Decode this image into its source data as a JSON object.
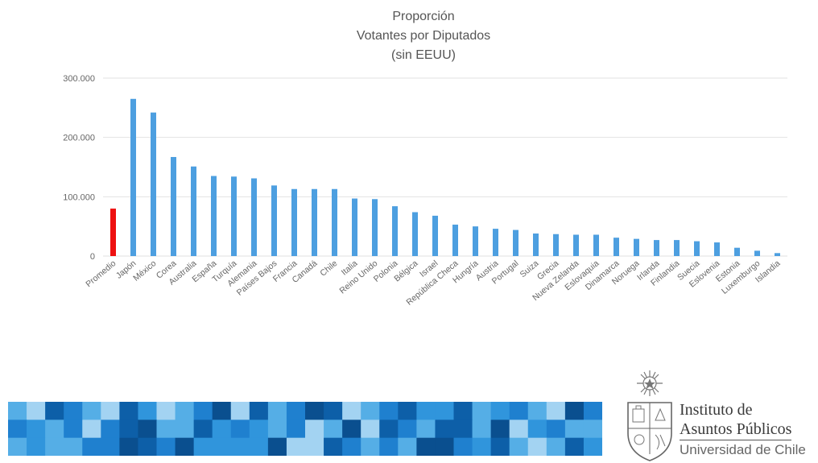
{
  "chart_data": {
    "type": "bar",
    "title": [
      "Proporción",
      "Votantes por Diputados",
      "(sin EEUU)"
    ],
    "xlabel": "",
    "ylabel": "",
    "ylim": [
      0,
      300000
    ],
    "yticks": [
      0,
      100000,
      200000,
      300000
    ],
    "ytick_labels": [
      "0",
      "100.000",
      "200.000",
      "300.000"
    ],
    "grid": true,
    "legend": "none",
    "colors": {
      "default": "#4d9fe0",
      "highlight": "#ee1111"
    },
    "highlight_index": 0,
    "categories": [
      "Promedio",
      "Japón",
      "México",
      "Corea",
      "Australia",
      "España",
      "Turquía",
      "Alemania",
      "Países Bajos",
      "Francia",
      "Canadá",
      "Chile",
      "Italia",
      "Reino Unido",
      "Polonia",
      "Bélgica",
      "Israel",
      "República Checa",
      "Hungría",
      "Austria",
      "Portugal",
      "Suiza",
      "Grecia",
      "Nueva Zelanda",
      "Eslovaquia",
      "Dinamarca",
      "Noruega",
      "Irlanda",
      "Finlandia",
      "Suecia",
      "Eslovenia",
      "Estonia",
      "Luxemburgo",
      "Islandia"
    ],
    "values": [
      80000,
      265000,
      242000,
      167000,
      151000,
      135000,
      134000,
      131000,
      119000,
      113000,
      113000,
      113000,
      97000,
      96000,
      84000,
      74000,
      68000,
      53000,
      50000,
      46000,
      44000,
      38000,
      37000,
      36000,
      36000,
      31000,
      29000,
      27000,
      27000,
      25000,
      23000,
      14000,
      9000,
      5000
    ]
  },
  "logo": {
    "line1": "Instituto de",
    "line2": "Asuntos Públicos",
    "line3": "Universidad de Chile"
  },
  "mosaic": {
    "palette": [
      "#0d5fa8",
      "#1f80cf",
      "#55aee6",
      "#a3d3f2",
      "#0a4f8f",
      "#3095dc"
    ]
  }
}
